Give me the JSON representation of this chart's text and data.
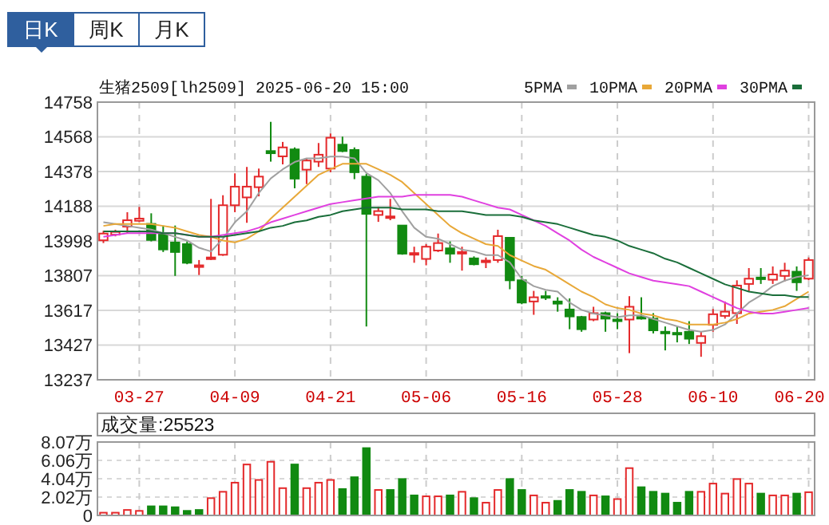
{
  "chart_data": [
    {
      "type": "candlestick",
      "title": "生猪2509[lh2509] 2025-06-20 15:00",
      "annotations": [
        "日K",
        "周K",
        "月K"
      ],
      "categories": [
        null,
        null,
        null,
        "03-27",
        null,
        null,
        null,
        null,
        null,
        null,
        null,
        "04-09",
        null,
        null,
        null,
        null,
        null,
        null,
        null,
        "04-21",
        null,
        null,
        null,
        null,
        null,
        null,
        null,
        "05-06",
        null,
        null,
        null,
        null,
        null,
        null,
        null,
        "05-16",
        null,
        null,
        null,
        null,
        null,
        null,
        null,
        "05-28",
        null,
        null,
        null,
        null,
        null,
        null,
        null,
        "06-10",
        null,
        null,
        null,
        null,
        null,
        null,
        null,
        "06-20"
      ],
      "ohlc": [
        [
          14001,
          14053,
          13986,
          14038
        ],
        [
          14032,
          14059,
          14023,
          14047
        ],
        [
          14076,
          14155,
          14038,
          14111
        ],
        [
          14108,
          14184,
          14102,
          14120
        ],
        [
          14091,
          14149,
          13995,
          14003
        ],
        [
          14033,
          14082,
          13937,
          13951
        ],
        [
          13989,
          14082,
          13806,
          13937
        ],
        [
          13980,
          13995,
          13870,
          13878
        ],
        [
          13855,
          13893,
          13811,
          13864
        ],
        [
          13899,
          14228,
          13893,
          13907
        ],
        [
          13922,
          14248,
          13916,
          14193
        ],
        [
          14193,
          14368,
          14155,
          14295
        ],
        [
          14236,
          14403,
          14097,
          14295
        ],
        [
          14292,
          14394,
          14242,
          14350
        ],
        [
          14490,
          14650,
          14432,
          14478
        ],
        [
          14461,
          14540,
          14417,
          14510
        ],
        [
          14499,
          14510,
          14286,
          14339
        ],
        [
          14388,
          14452,
          14309,
          14438
        ],
        [
          14432,
          14534,
          14403,
          14470
        ],
        [
          14394,
          14586,
          14374,
          14563
        ],
        [
          14525,
          14569,
          14484,
          14490
        ],
        [
          14496,
          14510,
          14336,
          14374
        ],
        [
          14350,
          14365,
          13529,
          14146
        ],
        [
          14140,
          14184,
          14102,
          14161
        ],
        [
          14129,
          14228,
          14111,
          14132
        ],
        [
          14082,
          14082,
          13922,
          13928
        ],
        [
          13925,
          13966,
          13878,
          13931
        ],
        [
          13899,
          13980,
          13864,
          13966
        ],
        [
          13945,
          14038,
          13937,
          13986
        ],
        [
          13957,
          13995,
          13878,
          13928
        ],
        [
          13934,
          13966,
          13835,
          13937
        ],
        [
          13902,
          13913,
          13864,
          13870
        ],
        [
          13887,
          13907,
          13849,
          13890
        ],
        [
          13893,
          14059,
          13878,
          14024
        ],
        [
          14015,
          14015,
          13733,
          13782
        ],
        [
          13782,
          13806,
          13651,
          13660
        ],
        [
          13666,
          13724,
          13593,
          13689
        ],
        [
          13695,
          13724,
          13674,
          13689
        ],
        [
          13666,
          13689,
          13610,
          13654
        ],
        [
          13622,
          13683,
          13514,
          13584
        ],
        [
          13581,
          13587,
          13500,
          13514
        ],
        [
          13567,
          13637,
          13558,
          13602
        ],
        [
          13602,
          13610,
          13500,
          13572
        ],
        [
          13567,
          13602,
          13514,
          13564
        ],
        [
          13567,
          13695,
          13383,
          13637
        ],
        [
          13581,
          13689,
          13567,
          13578
        ],
        [
          13572,
          13602,
          13491,
          13508
        ],
        [
          13500,
          13529,
          13398,
          13497
        ],
        [
          13494,
          13529,
          13442,
          13491
        ],
        [
          13500,
          13558,
          13433,
          13462
        ],
        [
          13439,
          13500,
          13363,
          13476
        ],
        [
          13538,
          13625,
          13500,
          13596
        ],
        [
          13587,
          13666,
          13572,
          13610
        ],
        [
          13602,
          13782,
          13543,
          13753
        ],
        [
          13762,
          13849,
          13718,
          13791
        ],
        [
          13797,
          13849,
          13762,
          13791
        ],
        [
          13785,
          13858,
          13762,
          13814
        ],
        [
          13806,
          13878,
          13776,
          13835
        ],
        [
          13829,
          13858,
          13724,
          13771
        ],
        [
          13791,
          13907,
          13782,
          13893
        ]
      ],
      "colors": [
        "#e4292b",
        "#e4292b",
        "#e4292b",
        "#e4292b",
        "#118a11",
        "#118a11",
        "#118a11",
        "#118a11",
        "#e4292b",
        "#e4292b",
        "#e4292b",
        "#e4292b",
        "#e4292b",
        "#e4292b",
        "#118a11",
        "#e4292b",
        "#118a11",
        "#e4292b",
        "#e4292b",
        "#e4292b",
        "#118a11",
        "#118a11",
        "#118a11",
        "#e4292b",
        "#e4292b",
        "#118a11",
        "#e4292b",
        "#e4292b",
        "#e4292b",
        "#118a11",
        "#e4292b",
        "#118a11",
        "#e4292b",
        "#e4292b",
        "#118a11",
        "#118a11",
        "#e4292b",
        "#118a11",
        "#118a11",
        "#118a11",
        "#118a11",
        "#e4292b",
        "#118a11",
        "#118a11",
        "#e4292b",
        "#118a11",
        "#118a11",
        "#118a11",
        "#118a11",
        "#118a11",
        "#e4292b",
        "#e4292b",
        "#e4292b",
        "#e4292b",
        "#e4292b",
        "#118a11",
        "#e4292b",
        "#e4292b",
        "#118a11",
        "#e4292b"
      ],
      "series": [
        {
          "name": "5PMA",
          "type": "line",
          "color": "#a0a0a0",
          "values": [
            14100,
            14090,
            14080,
            14070,
            14060,
            14040,
            14020,
            14000,
            13960,
            13940,
            14010,
            14100,
            14160,
            14260,
            14340,
            14390,
            14430,
            14450,
            14450,
            14460,
            14460,
            14450,
            14370,
            14330,
            14260,
            14160,
            14070,
            14020,
            14010,
            13980,
            13950,
            13940,
            13920,
            13920,
            13880,
            13790,
            13750,
            13730,
            13720,
            13660,
            13620,
            13600,
            13590,
            13580,
            13590,
            13590,
            13570,
            13550,
            13530,
            13510,
            13500,
            13510,
            13540,
            13600,
            13660,
            13700,
            13750,
            13780,
            13800,
            13810
          ]
        },
        {
          "name": "10PMA",
          "type": "line",
          "color": "#e8a838",
          "values": [
            14080,
            14090,
            14090,
            14090,
            14090,
            14080,
            14070,
            14050,
            14030,
            14020,
            14000,
            13990,
            14010,
            14050,
            14120,
            14180,
            14240,
            14300,
            14360,
            14390,
            14420,
            14420,
            14420,
            14390,
            14360,
            14320,
            14260,
            14200,
            14140,
            14080,
            14040,
            14010,
            13980,
            13970,
            13920,
            13890,
            13860,
            13840,
            13800,
            13760,
            13720,
            13690,
            13650,
            13630,
            13620,
            13600,
            13590,
            13570,
            13560,
            13540,
            13540,
            13540,
            13550,
            13570,
            13600,
            13610,
            13620,
            13640,
            13680,
            13720
          ]
        },
        {
          "name": "20PMA",
          "type": "line",
          "color": "#e040e0",
          "values": [
            14020,
            14030,
            14040,
            14040,
            14040,
            14040,
            14040,
            14030,
            14020,
            14020,
            14030,
            14040,
            14050,
            14070,
            14100,
            14120,
            14140,
            14160,
            14180,
            14200,
            14210,
            14220,
            14230,
            14240,
            14240,
            14240,
            14250,
            14250,
            14250,
            14250,
            14240,
            14220,
            14200,
            14180,
            14170,
            14140,
            14110,
            14080,
            14040,
            14000,
            13950,
            13910,
            13880,
            13850,
            13820,
            13800,
            13780,
            13770,
            13760,
            13750,
            13720,
            13690,
            13660,
            13630,
            13610,
            13600,
            13600,
            13610,
            13620,
            13630
          ]
        },
        {
          "name": "30PMA",
          "type": "line",
          "color": "#1a6e3a",
          "values": [
            14050,
            14050,
            14050,
            14050,
            14050,
            14040,
            14040,
            14030,
            14020,
            14020,
            14020,
            14030,
            14040,
            14050,
            14070,
            14080,
            14100,
            14110,
            14130,
            14140,
            14160,
            14170,
            14180,
            14180,
            14180,
            14170,
            14170,
            14170,
            14160,
            14160,
            14160,
            14150,
            14140,
            14140,
            14140,
            14130,
            14110,
            14100,
            14090,
            14070,
            14050,
            14030,
            14020,
            14000,
            13970,
            13950,
            13930,
            13900,
            13880,
            13850,
            13820,
            13790,
            13760,
            13740,
            13720,
            13710,
            13700,
            13700,
            13690,
            13690
          ]
        }
      ],
      "ylim": [
        13237,
        14758
      ],
      "yticks": [
        13237,
        13427,
        13617,
        13807,
        13998,
        14188,
        14378,
        14568,
        14758
      ],
      "grid": true,
      "legend": "top right",
      "marker": "none"
    },
    {
      "type": "bar",
      "annotations": [
        "成交量:25523"
      ],
      "values": [
        0.3,
        0.3,
        0.6,
        0.5,
        1.0,
        1.0,
        0.9,
        0.5,
        0.6,
        1.9,
        2.6,
        3.6,
        5.6,
        3.9,
        5.9,
        3.0,
        5.6,
        3.0,
        3.6,
        3.9,
        2.9,
        4.2,
        7.4,
        2.8,
        2.8,
        4.0,
        2.2,
        2.1,
        2.1,
        2.2,
        2.6,
        1.9,
        1.4,
        2.8,
        4.0,
        2.8,
        2.2,
        1.4,
        1.6,
        2.8,
        2.6,
        2.2,
        2.1,
        1.8,
        5.2,
        3.1,
        2.6,
        2.4,
        1.4,
        2.6,
        2.6,
        3.5,
        2.4,
        4.0,
        3.5,
        2.4,
        2.2,
        2.2,
        2.4,
        2.5523
      ],
      "colors": [
        "#e4292b",
        "#e4292b",
        "#e4292b",
        "#e4292b",
        "#118a11",
        "#118a11",
        "#118a11",
        "#118a11",
        "#118a11",
        "#e4292b",
        "#e4292b",
        "#e4292b",
        "#e4292b",
        "#e4292b",
        "#e4292b",
        "#e4292b",
        "#118a11",
        "#e4292b",
        "#e4292b",
        "#e4292b",
        "#118a11",
        "#118a11",
        "#118a11",
        "#e4292b",
        "#118a11",
        "#118a11",
        "#118a11",
        "#e4292b",
        "#e4292b",
        "#118a11",
        "#e4292b",
        "#118a11",
        "#e4292b",
        "#e4292b",
        "#118a11",
        "#118a11",
        "#e4292b",
        "#e4292b",
        "#118a11",
        "#118a11",
        "#118a11",
        "#e4292b",
        "#118a11",
        "#e4292b",
        "#e4292b",
        "#118a11",
        "#118a11",
        "#118a11",
        "#118a11",
        "#118a11",
        "#e4292b",
        "#e4292b",
        "#e4292b",
        "#e4292b",
        "#e4292b",
        "#118a11",
        "#e4292b",
        "#e4292b",
        "#118a11",
        "#e4292b"
      ],
      "ylim": [
        0,
        8.07
      ],
      "yticks": [
        0,
        {
          "value": 2.02,
          "label": "2.02万"
        },
        {
          "value": 4.04,
          "label": "4.04万"
        },
        {
          "value": 6.06,
          "label": "6.06万"
        },
        {
          "value": 8.07,
          "label": "8.07万"
        }
      ],
      "grid": true,
      "tick_labels": "y"
    }
  ]
}
